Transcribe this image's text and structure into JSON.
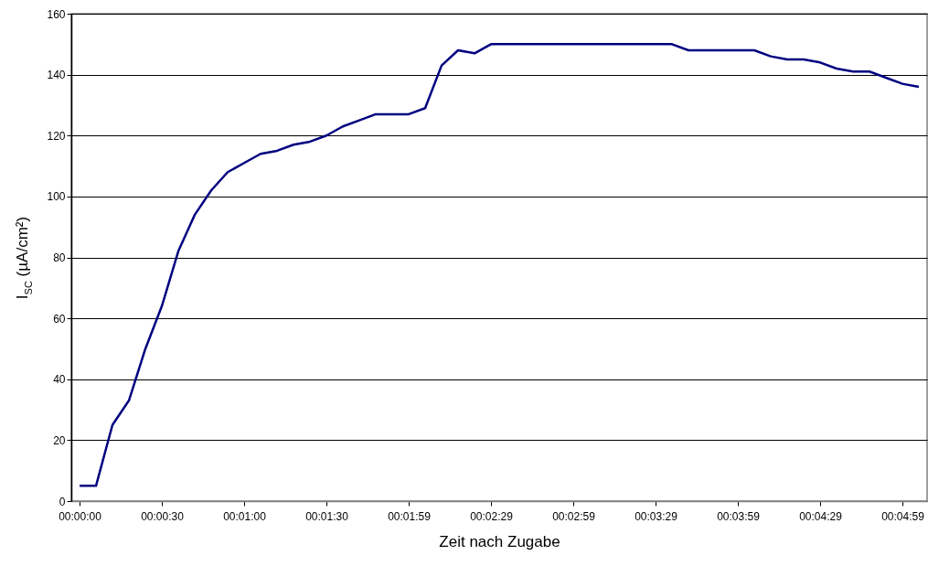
{
  "chart_data": {
    "type": "line",
    "xlabel": "Zeit nach Zugabe",
    "ylabel": "I$_{SC}$ (µA/cm²)",
    "color": "#000080",
    "grid": "y",
    "ylim": [
      0,
      160
    ],
    "yticks": [
      0,
      20,
      40,
      60,
      80,
      100,
      120,
      140,
      160
    ],
    "categories": [
      "00:00:00",
      null,
      null,
      null,
      null,
      "00:00:30",
      null,
      null,
      null,
      null,
      "00:01:00",
      null,
      null,
      null,
      null,
      "00:01:30",
      null,
      null,
      null,
      null,
      "00:01:59",
      null,
      null,
      null,
      null,
      "00:02:29",
      null,
      null,
      null,
      null,
      "00:02:59",
      null,
      null,
      null,
      null,
      "00:03:29",
      null,
      null,
      null,
      null,
      "00:03:59",
      null,
      null,
      null,
      null,
      "00:04:29",
      null,
      null,
      null,
      null,
      "00:04:59",
      null
    ],
    "values": [
      5,
      5,
      25,
      33,
      50,
      64,
      82,
      94,
      102,
      108,
      111,
      114,
      115,
      117,
      118,
      120,
      123,
      125,
      127,
      127,
      127,
      129,
      143,
      148,
      147,
      150,
      150,
      150,
      150,
      150,
      150,
      150,
      150,
      150,
      150,
      150,
      150,
      148,
      148,
      148,
      148,
      148,
      146,
      145,
      145,
      144,
      142,
      141,
      141,
      139,
      137,
      136
    ]
  }
}
